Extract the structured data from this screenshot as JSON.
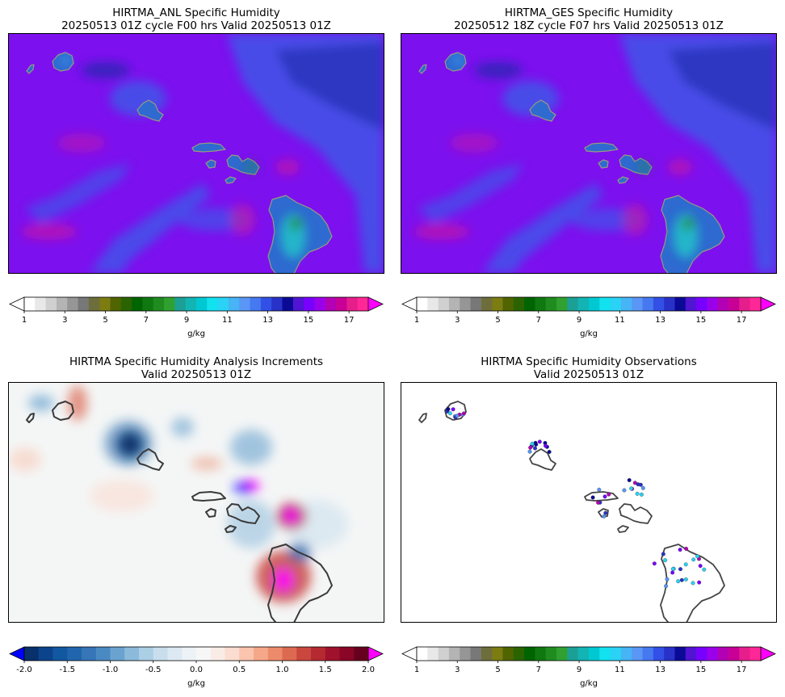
{
  "panels": [
    {
      "id": "anl",
      "title_line1": "HIRTMA_ANL Specific Humidity",
      "title_line2": "20250513 01Z cycle F00 hrs Valid 20250513 01Z"
    },
    {
      "id": "ges",
      "title_line1": "HIRTMA_GES Specific Humidity",
      "title_line2": "20250512 18Z cycle F07 hrs Valid 20250513 01Z"
    },
    {
      "id": "inc",
      "title_line1": "HIRTMA Specific Humidity Analysis Increments",
      "title_line2": "Valid 20250513 01Z"
    },
    {
      "id": "obs",
      "title_line1": "HIRTMA Specific Humidity Observations",
      "title_line2": "Valid 20250513 01Z"
    }
  ],
  "colorbars": {
    "humidity": {
      "unit": "g/kg",
      "ticks": [
        "1",
        "3",
        "5",
        "7",
        "9",
        "11",
        "13",
        "15",
        "17"
      ],
      "colors": [
        "#ffffff",
        "#e8e8e8",
        "#d0d0d0",
        "#b4b4b4",
        "#969696",
        "#787878",
        "#6e6e3c",
        "#7c7c12",
        "#506400",
        "#2a6400",
        "#006400",
        "#107810",
        "#208c20",
        "#30a030",
        "#1ca096",
        "#12b4b4",
        "#00c8d2",
        "#12e1f0",
        "#2ad2f5",
        "#46b4f5",
        "#5a96f5",
        "#4678f0",
        "#3250e6",
        "#2832c8",
        "#0a0a96",
        "#5014d2",
        "#7800ff",
        "#9b00eb",
        "#b400b4",
        "#c80096",
        "#e61e8c",
        "#ff2896"
      ],
      "under_color": "#ffffff",
      "over_color": "#ff00ff"
    },
    "increment": {
      "unit": "g/kg",
      "ticks": [
        "-2.0",
        "-1.5",
        "-1.0",
        "-0.5",
        "0.0",
        "0.5",
        "1.0",
        "1.5",
        "2.0"
      ],
      "colors": [
        "#08306b",
        "#0c448c",
        "#1258a0",
        "#2166ac",
        "#3575b8",
        "#4a8ac2",
        "#6aa3cf",
        "#8cbadb",
        "#abcfe5",
        "#c8deed",
        "#dce9f2",
        "#ecf2f6",
        "#f7f7f7",
        "#f9ece6",
        "#fbdcd0",
        "#fac4ae",
        "#f5a889",
        "#ec8b6b",
        "#dc6a51",
        "#c9473e",
        "#b42a30",
        "#a0122c",
        "#8a0526",
        "#67001f"
      ],
      "under_color": "#0000ff",
      "over_color": "#ff00ff"
    }
  },
  "map_colors": {
    "humidity_background": "#7c10ee",
    "humidity_blue": "#3f55e8",
    "humidity_navy": "#1d2aa8",
    "humidity_pink": "#d0189a",
    "increment_background": "#f4f6f6",
    "coastline": "#555555"
  },
  "observations": {
    "marker_colors": [
      "#2832c8",
      "#0a0a96",
      "#7800ff",
      "#5a96f5",
      "#2ad2f5",
      "#b400b4"
    ]
  }
}
